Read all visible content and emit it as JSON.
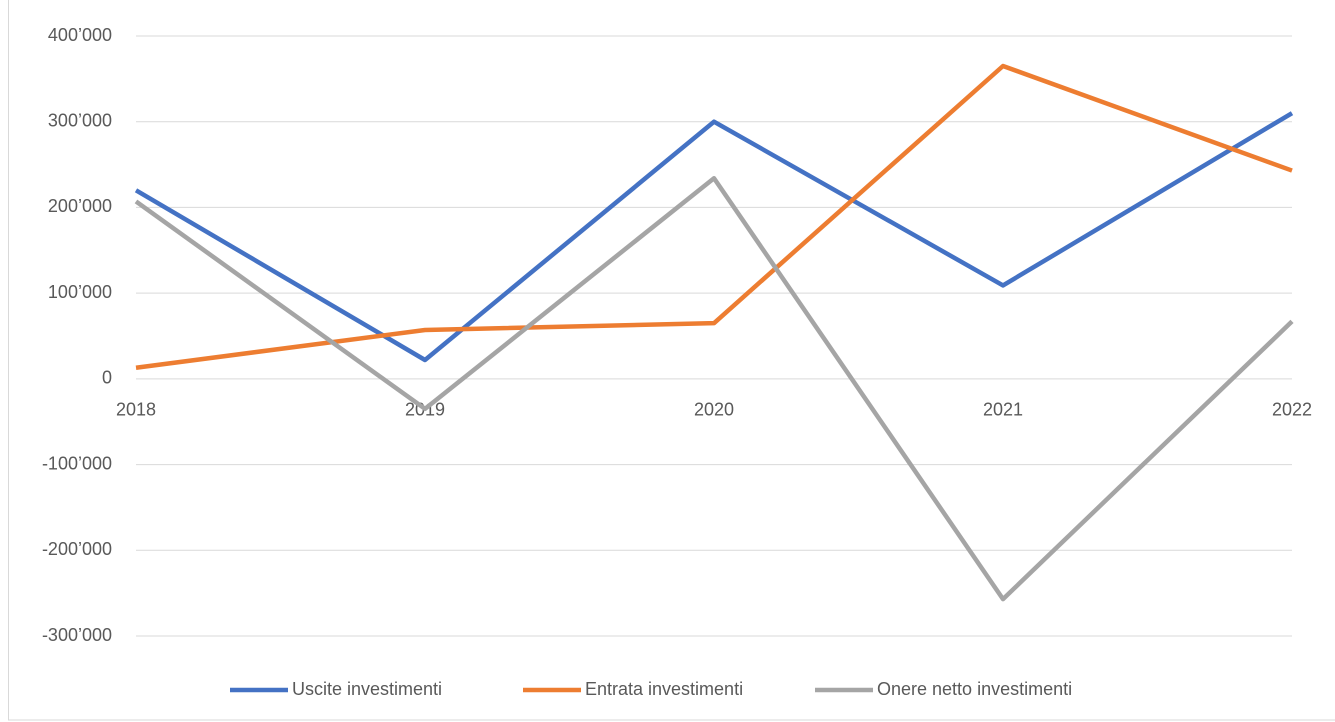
{
  "chart_data": {
    "type": "line",
    "categories": [
      "2018",
      "2019",
      "2020",
      "2021",
      "2022"
    ],
    "series": [
      {
        "name": "Uscite investimenti",
        "color": "#4472c4",
        "values": [
          220000,
          22000,
          300000,
          109000,
          310000
        ]
      },
      {
        "name": "Entrata investimenti",
        "color": "#ed7d31",
        "values": [
          13000,
          57000,
          65000,
          365000,
          243000
        ]
      },
      {
        "name": "Onere netto investimenti",
        "color": "#a5a5a5",
        "values": [
          207000,
          -35000,
          234000,
          -257000,
          67000
        ]
      }
    ],
    "ylim": [
      -300000,
      400000
    ],
    "yticks": [
      {
        "value": -300000,
        "label": "-300’000"
      },
      {
        "value": -200000,
        "label": "-200’000"
      },
      {
        "value": -100000,
        "label": "-100’000"
      },
      {
        "value": 0,
        "label": "0"
      },
      {
        "value": 100000,
        "label": "100’000"
      },
      {
        "value": 200000,
        "label": "200’000"
      },
      {
        "value": 300000,
        "label": "300’000"
      },
      {
        "value": 400000,
        "label": "400’000"
      }
    ],
    "grid": true,
    "legend": "bottom"
  }
}
